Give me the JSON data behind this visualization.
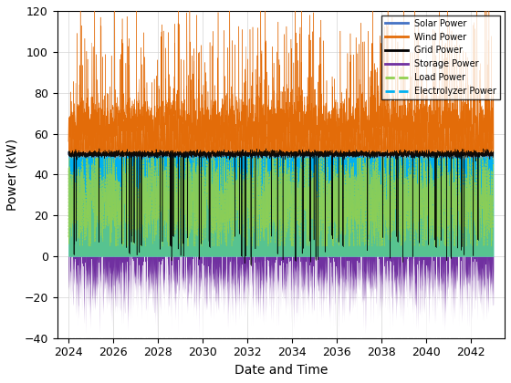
{
  "xlabel": "Date and Time",
  "ylabel": "Power (kW)",
  "xlim": [
    2023.5,
    2043.5
  ],
  "ylim": [
    -40,
    120
  ],
  "xticks": [
    2024,
    2026,
    2028,
    2030,
    2032,
    2034,
    2036,
    2038,
    2040,
    2042
  ],
  "yticks": [
    -40,
    -20,
    0,
    20,
    40,
    60,
    80,
    100,
    120
  ],
  "n_points": 4000,
  "solar_color": "#4472C4",
  "wind_color": "#E36C09",
  "grid_color": "#000000",
  "storage_color": "#7030A0",
  "load_color": "#92D050",
  "electrolyzer_color": "#00B0F0",
  "background_color": "#FFFFFF",
  "figsize": [
    5.6,
    4.2
  ],
  "dpi": 100
}
